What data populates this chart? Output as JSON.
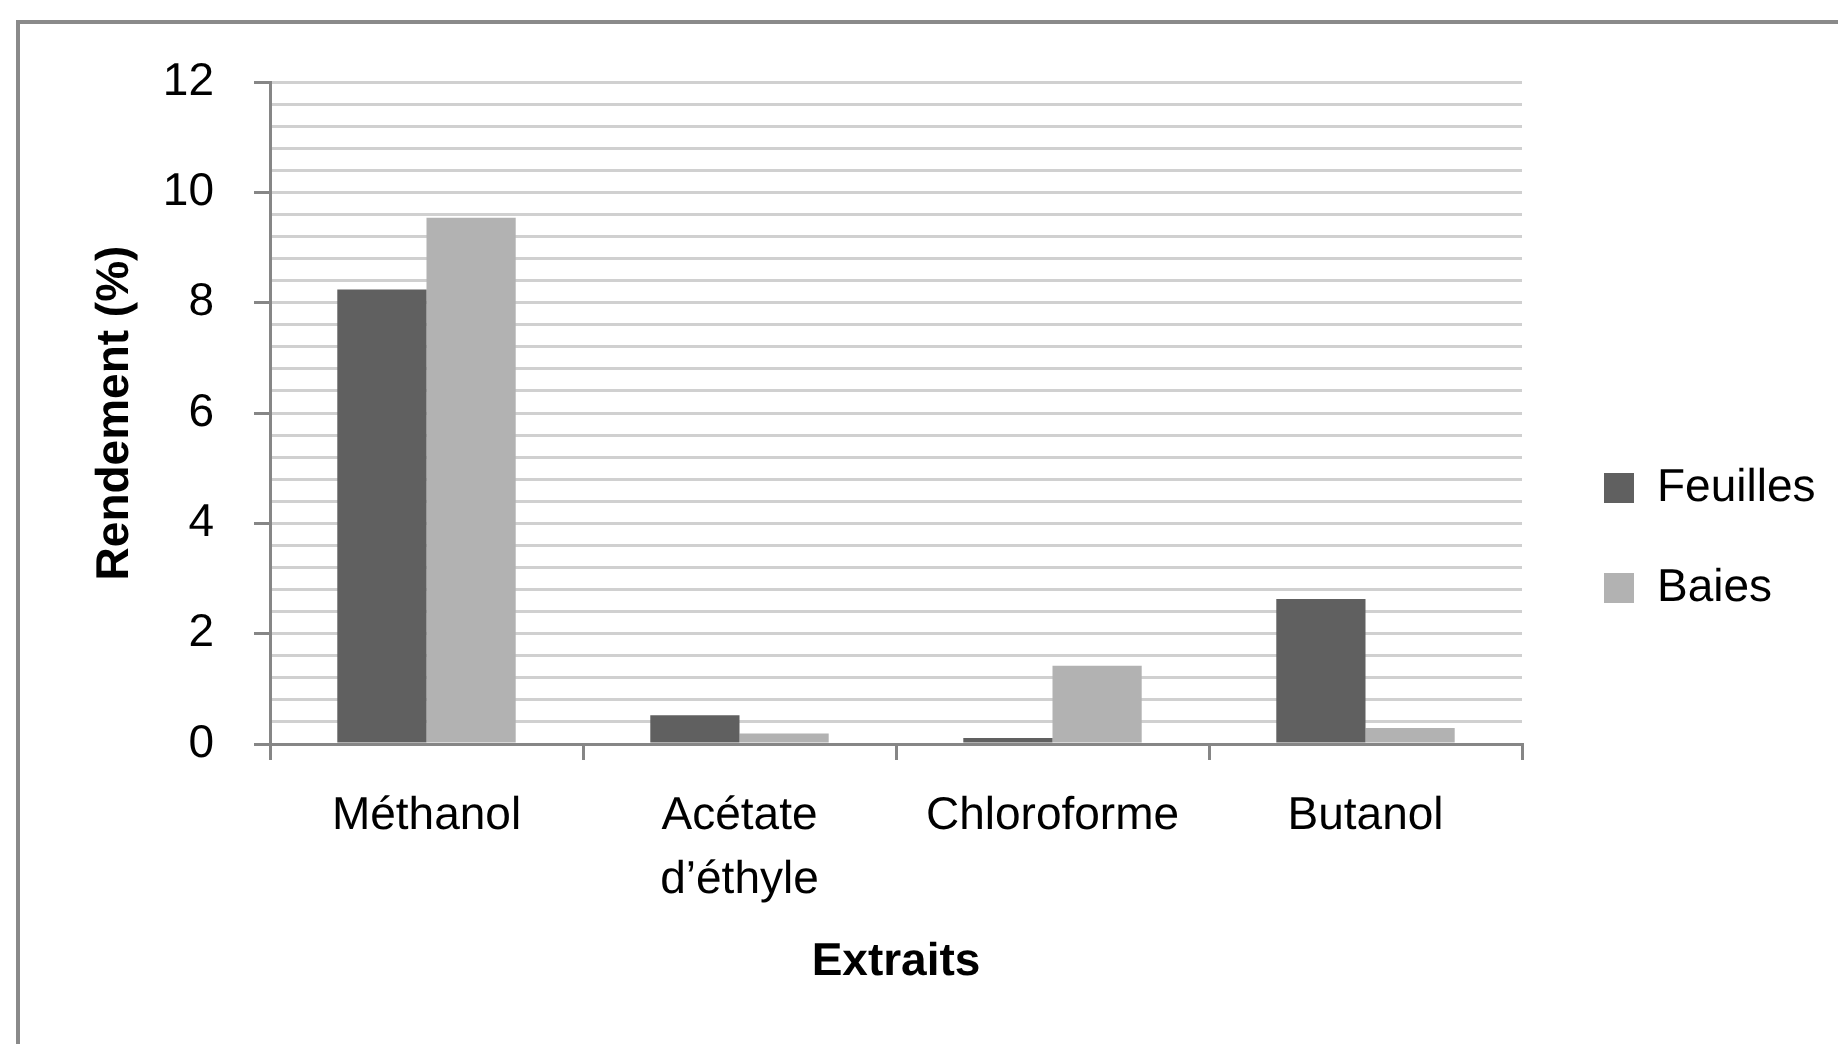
{
  "chart_data": {
    "type": "bar",
    "xlabel": "Extraits",
    "ylabel": "Rendement (%)",
    "categories": [
      "Méthanol",
      "Acétate d’éthyle",
      "Chloroforme",
      "Butanol"
    ],
    "series": [
      {
        "name": "Feuilles",
        "color": "#606060",
        "values": [
          8.24,
          0.52,
          0.11,
          2.63
        ]
      },
      {
        "name": "Baies",
        "color": "#b2b2b2",
        "values": [
          9.54,
          0.19,
          1.42,
          0.29
        ]
      }
    ],
    "ylim": [
      0,
      12
    ],
    "yticks": [
      0,
      {
        "value": 0.4,
        "label": null
      },
      {
        "value": 0.8,
        "label": null
      },
      {
        "value": 1.2,
        "label": null
      },
      {
        "value": 1.6,
        "label": null
      },
      2,
      {
        "value": 2.4,
        "label": null
      },
      {
        "value": 2.8,
        "label": null
      },
      {
        "value": 3.2,
        "label": null
      },
      {
        "value": 3.6,
        "label": null
      },
      4,
      {
        "value": 4.4,
        "label": null
      },
      {
        "value": 4.8,
        "label": null
      },
      {
        "value": 5.2,
        "label": null
      },
      {
        "value": 5.6,
        "label": null
      },
      6,
      {
        "value": 6.4,
        "label": null
      },
      {
        "value": 6.8,
        "label": null
      },
      {
        "value": 7.2,
        "label": null
      },
      {
        "value": 7.6,
        "label": null
      },
      8,
      {
        "value": 8.4,
        "label": null
      },
      {
        "value": 8.8,
        "label": null
      },
      {
        "value": 9.2,
        "label": null
      },
      {
        "value": 9.6,
        "label": null
      },
      10,
      {
        "value": 10.4,
        "label": null
      },
      {
        "value": 10.8,
        "label": null
      },
      {
        "value": 11.2,
        "label": null
      },
      {
        "value": 11.6,
        "label": null
      },
      12
    ],
    "grid": "y",
    "legend": "right"
  }
}
